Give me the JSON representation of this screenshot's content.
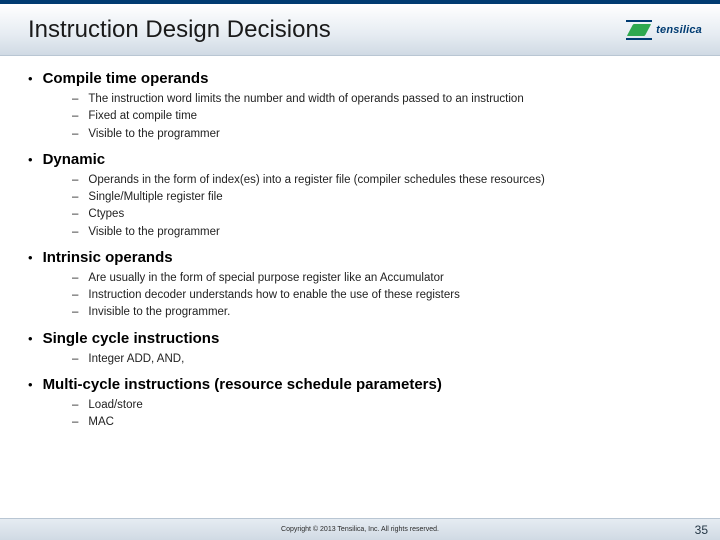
{
  "brand": {
    "name": "tensilica",
    "accent_green": "#2fa84f",
    "accent_blue": "#003b71"
  },
  "title": "Instruction Design Decisions",
  "sections": [
    {
      "heading": "Compile time operands",
      "items": [
        "The instruction word limits the number and width of operands passed to an instruction",
        "Fixed at compile time",
        "Visible to the programmer"
      ]
    },
    {
      "heading": "Dynamic",
      "items": [
        "Operands in the form of index(es) into a register file (compiler schedules these resources)",
        "Single/Multiple register file",
        "Ctypes",
        "Visible to the programmer"
      ]
    },
    {
      "heading": "Intrinsic operands",
      "items": [
        "Are usually in the form of special purpose register like an Accumulator",
        "Instruction decoder understands how to enable the use of these registers",
        "Invisible to the programmer."
      ]
    },
    {
      "heading": "Single cycle instructions",
      "items": [
        "Integer ADD, AND,"
      ]
    },
    {
      "heading": "Multi-cycle instructions (resource schedule parameters)",
      "items": [
        "Load/store",
        "MAC"
      ]
    }
  ],
  "footer": {
    "copyright": "Copyright © 2013  Tensilica, Inc. All rights reserved.",
    "page": "35"
  }
}
